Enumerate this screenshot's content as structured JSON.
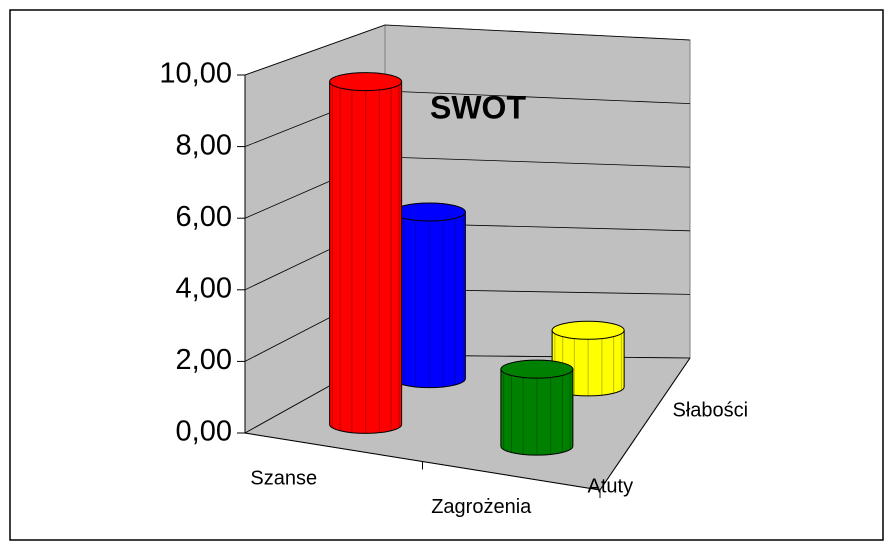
{
  "chart_data": {
    "type": "bar3d",
    "title": "SWOT",
    "categories": [
      "Szanse",
      "Zagrożenia"
    ],
    "series": [
      {
        "name": "Atuty",
        "colors": [
          "#ff0000",
          "#008000"
        ],
        "values": [
          9.8,
          2.2
        ]
      },
      {
        "name": "Słabości",
        "colors": [
          "#0000ff",
          "#ffff00"
        ],
        "values": [
          5.0,
          1.7
        ]
      }
    ],
    "ylim": [
      0,
      10
    ],
    "yticks": [
      {
        "value": 0,
        "label": "0,00"
      },
      {
        "value": 2,
        "label": "2,00"
      },
      {
        "value": 4,
        "label": "4,00"
      },
      {
        "value": 6,
        "label": "6,00"
      },
      {
        "value": 8,
        "label": "8,00"
      },
      {
        "value": 10,
        "label": "10,00"
      }
    ],
    "grid": true
  }
}
